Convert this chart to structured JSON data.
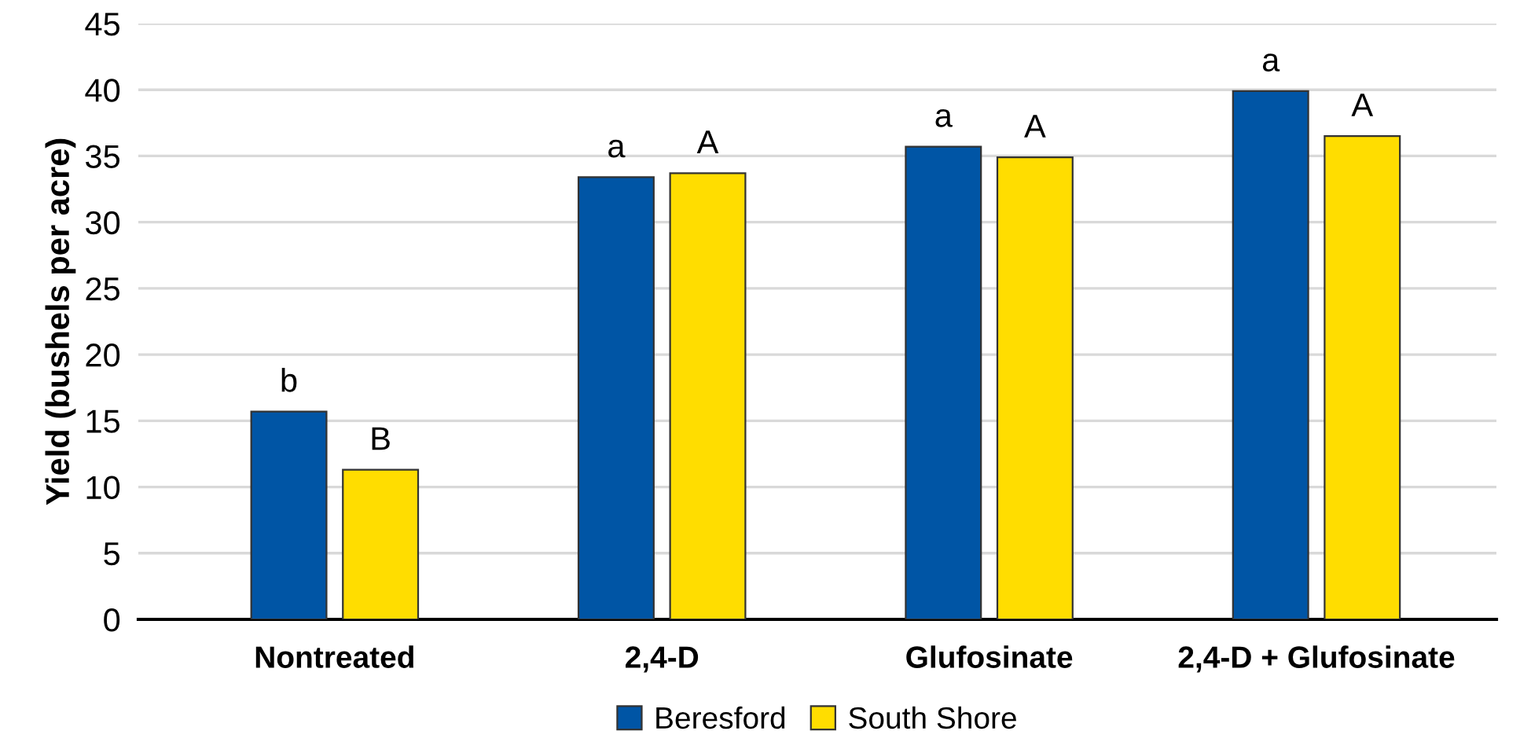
{
  "chart_data": {
    "type": "bar",
    "ylabel": "Yield (bushels per acre)",
    "categories": [
      "Nontreated",
      "2,4-D",
      "Glufosinate",
      "2,4-D + Glufosinate"
    ],
    "series": [
      {
        "name": "Beresford",
        "color": "#0055a5",
        "values": [
          15.7,
          33.4,
          35.7,
          39.9
        ],
        "value_labels": [
          "b",
          "a",
          "a",
          "a"
        ]
      },
      {
        "name": "South Shore",
        "color": "#ffdd00",
        "values": [
          11.3,
          33.7,
          34.9,
          36.5
        ],
        "value_labels": [
          "B",
          "A",
          "A",
          "A"
        ]
      }
    ],
    "ylim": [
      0,
      45
    ],
    "yticks": [
      0,
      5,
      10,
      15,
      20,
      25,
      30,
      35,
      40,
      45
    ],
    "grid": "y",
    "legend": "bottom"
  }
}
